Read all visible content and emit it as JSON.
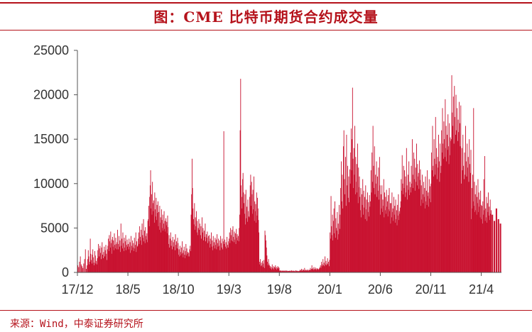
{
  "title": "图：CME 比特币期货合约成交量",
  "source": "来源：Wind，中泰证券研究所",
  "colors": {
    "bar": "#c8102e",
    "accent": "#b5121b",
    "axis": "#555555"
  },
  "chart_data": {
    "type": "bar",
    "title": "图：CME 比特币期货合约成交量",
    "xlabel": "",
    "ylabel": "",
    "ylim": [
      0,
      25000
    ],
    "y_ticks": [
      0,
      5000,
      10000,
      15000,
      20000,
      25000
    ],
    "x_ticks": [
      "17/12",
      "18/5",
      "18/10",
      "19/3",
      "19/8",
      "20/1",
      "20/6",
      "20/11",
      "21/4"
    ],
    "x_range": [
      "2017-12",
      "2021-05"
    ],
    "series": [
      {
        "frequency": "trading-day",
        "note": "approximate values read from the chart, grouped by month",
        "monthly_values": {
          "2017-12": [
            800,
            600,
            1200,
            1800,
            900,
            700,
            500,
            1000,
            1500,
            2600,
            400,
            800
          ],
          "2018-01": [
            1500,
            2500,
            1800,
            900,
            1200,
            3800,
            2100,
            1400,
            1000,
            2000,
            2600,
            1700,
            1100,
            800,
            2400,
            1900,
            1000,
            1300,
            900,
            1600
          ],
          "2018-02": [
            2500,
            3200,
            1800,
            2700,
            3000,
            2200,
            1500,
            2800,
            3400,
            2000,
            1600,
            2300,
            2900,
            1800,
            2500,
            3100,
            2100,
            1400,
            2600
          ],
          "2018-03": [
            3000,
            3800,
            2400,
            4200,
            3500,
            2800,
            4600,
            3300,
            2100,
            3700,
            4000,
            2900,
            3600,
            2500,
            4400,
            3100,
            2700,
            3900,
            3200,
            2600,
            3400,
            4800
          ],
          "2018-04": [
            2600,
            3200,
            4100,
            2900,
            3600,
            2300,
            5500,
            3000,
            3800,
            2700,
            4500,
            3300,
            2400,
            3900,
            2800,
            3500,
            4200,
            2500,
            3100,
            3700,
            2900
          ],
          "2018-05": [
            3200,
            2600,
            3800,
            2900,
            3400,
            2200,
            4100,
            3000,
            2500,
            3600,
            2800,
            3300,
            2400,
            3900,
            2700,
            3100,
            4500,
            2300,
            3500,
            2900,
            3000
          ],
          "2018-06": [
            3800,
            4500,
            3200,
            5200,
            4000,
            3600,
            4800,
            3100,
            5500,
            4200,
            3900,
            6000,
            3500,
            4700,
            3300,
            5100,
            4100,
            3700,
            4400,
            3400,
            5800
          ],
          "2018-07": [
            6000,
            7500,
            5200,
            8500,
            9800,
            11500,
            7200,
            8800,
            6500,
            10200,
            7800,
            6900,
            8100,
            5600,
            9000,
            7100,
            6300,
            8400,
            5900,
            7600,
            6700,
            8000
          ],
          "2018-08": [
            5200,
            6800,
            4800,
            7500,
            5600,
            6200,
            4500,
            7100,
            5900,
            5000,
            6500,
            4700,
            5500,
            6900,
            4900,
            5800,
            4600,
            6100,
            5300,
            5700,
            4400,
            6400,
            5100
          ],
          "2018-09": [
            3200,
            4200,
            2800,
            3800,
            4500,
            3000,
            3600,
            2600,
            4000,
            3400,
            2900,
            3700,
            2500,
            4300,
            3100,
            3500,
            2700,
            3900,
            3300
          ],
          "2018-10": [
            2000,
            2600,
            1800,
            3000,
            2300,
            1900,
            2800,
            2100,
            3500,
            2200,
            1700,
            2500,
            2900,
            2000,
            1600,
            2400,
            3200,
            1900,
            2700,
            2100,
            2300,
            1800
          ],
          "2018-11": [
            2200,
            1800,
            2600,
            3000,
            2400,
            6500,
            8800,
            12800,
            9500,
            7200,
            6000,
            5400,
            7800,
            4800,
            6200,
            5200,
            6900,
            4500,
            5800,
            4200,
            5000
          ],
          "2018-12": [
            6000,
            4800,
            5500,
            4200,
            5200,
            3800,
            6200,
            4500,
            5000,
            3600,
            4700,
            4000,
            5500,
            3500,
            4300,
            3900,
            4600,
            3300,
            4100
          ],
          "2019-01": [
            3500,
            4200,
            2800,
            3800,
            3200,
            4500,
            2900,
            3600,
            2500,
            4100,
            3000,
            3400,
            2700,
            3900,
            3100,
            3700,
            2600,
            4300,
            3300,
            2900,
            3800
          ],
          "2019-02": [
            3000,
            3600,
            2500,
            4100,
            3300,
            2800,
            3800,
            2600,
            3500,
            15900,
            3200,
            3700,
            2900,
            3400,
            2700,
            4000,
            3100,
            2800,
            3500
          ],
          "2019-03": [
            3800,
            4500,
            3300,
            5000,
            4200,
            3600,
            4800,
            3500,
            5200,
            4000,
            3400,
            4600,
            3700,
            4400,
            3200,
            4900,
            3900,
            4300,
            3600,
            4100,
            3500
          ],
          "2019-04": [
            5000,
            6500,
            16000,
            21800,
            9800,
            8500,
            7200,
            10500,
            11200,
            9000,
            7800,
            6600,
            8800,
            5400,
            9300,
            6100,
            7400,
            5700,
            8200,
            6900,
            6300
          ],
          "2019-05": [
            6200,
            8500,
            9800,
            11000,
            7500,
            10200,
            8800,
            6600,
            9300,
            7100,
            10800,
            5800,
            8000,
            6900,
            7700,
            5600,
            9000,
            6400,
            8400,
            7200,
            5900,
            4500
          ],
          "2019-06": [
            1200,
            900,
            1500,
            700,
            1100,
            800,
            1300,
            600,
            1000,
            1400,
            500,
            4700,
            4200,
            3600,
            2800,
            1900,
            1200,
            800,
            1500,
            1000
          ],
          "2019-07": [
            800,
            500,
            700,
            400,
            600,
            300,
            900,
            500,
            400,
            700,
            300,
            600,
            500,
            800,
            400,
            600,
            300,
            500,
            700,
            400,
            600,
            500
          ],
          "2019-08": [
            200,
            150,
            250,
            180,
            120,
            200,
            160,
            220,
            140,
            190,
            130,
            210,
            170,
            110,
            230,
            150,
            200,
            120,
            180,
            160,
            140,
            190
          ],
          "2019-09": [
            150,
            200,
            130,
            180,
            250,
            160,
            120,
            210,
            170,
            140,
            190,
            110,
            230,
            150,
            200,
            130,
            180,
            160,
            120,
            170
          ],
          "2019-10": [
            200,
            300,
            180,
            250,
            400,
            220,
            160,
            350,
            210,
            280,
            190,
            500,
            230,
            170,
            310,
            200,
            260,
            180,
            330,
            220,
            150,
            290,
            240
          ],
          "2019-11": [
            300,
            500,
            250,
            400,
            800,
            350,
            450,
            280,
            600,
            380,
            320,
            550,
            400,
            270,
            480,
            350,
            420,
            300,
            380,
            500
          ],
          "2019-12": [
            600,
            800,
            500,
            1200,
            700,
            900,
            1500,
            800,
            1100,
            700,
            1800,
            900,
            1300,
            800,
            1000,
            1600,
            900,
            1200,
            700,
            1400
          ],
          "2020-01": [
            4500,
            3800,
            8600,
            5200,
            4200,
            6500,
            3600,
            5800,
            7200,
            4400,
            8000,
            3900,
            6100,
            5000,
            4700,
            6800,
            3700,
            5500,
            4300,
            7600,
            4900
          ],
          "2020-02": [
            6500,
            9500,
            12500,
            8000,
            11000,
            7200,
            14200,
            16000,
            10500,
            8800,
            13000,
            7500,
            15500,
            9800,
            12000,
            8400,
            10800,
            7900,
            11600
          ],
          "2020-03": [
            10000,
            13500,
            16200,
            11500,
            15000,
            20800,
            12800,
            9500,
            14000,
            11000,
            16500,
            8800,
            13000,
            10200,
            12200,
            9000,
            14500,
            7800,
            11800,
            9600,
            10800,
            8500
          ],
          "2020-04": [
            7000,
            9500,
            6200,
            8800,
            7600,
            10500,
            6500,
            9200,
            7300,
            8500,
            6000,
            9800,
            7100,
            8200,
            5800,
            9000,
            6800,
            7900,
            6300,
            8700,
            7400
          ],
          "2020-05": [
            8000,
            11500,
            9000,
            13500,
            10200,
            16500,
            12000,
            9500,
            14200,
            8800,
            11000,
            10000,
            12500,
            8500,
            10800,
            9200,
            11800,
            8200,
            13000,
            9800
          ],
          "2020-06": [
            6500,
            8800,
            7200,
            9800,
            6800,
            8200,
            7500,
            10500,
            6200,
            9000,
            7000,
            8500,
            6600,
            9300,
            7400,
            8000,
            6300,
            8700,
            7100,
            9500,
            6900,
            7800
          ],
          "2020-07": [
            5500,
            7800,
            6200,
            9000,
            6800,
            7200,
            5800,
            8500,
            6500,
            7500,
            5600,
            8200,
            6000,
            7000,
            5300,
            7600,
            6400,
            8800,
            5900,
            6900,
            6600,
            7300
          ],
          "2020-08": [
            8000,
            10500,
            9200,
            13200,
            10000,
            8800,
            12000,
            9500,
            11500,
            8500,
            10800,
            9000,
            14000,
            9800,
            8200,
            11000,
            9300,
            12500,
            8700,
            10200,
            9600
          ],
          "2020-09": [
            9000,
            12000,
            10000,
            15000,
            11000,
            9500,
            13500,
            10500,
            12800,
            9200,
            11800,
            10200,
            14500,
            9800,
            12200,
            10800,
            11200,
            9400,
            12600,
            10400,
            11600
          ],
          "2020-10": [
            7500,
            9800,
            8200,
            11000,
            8800,
            7800,
            10200,
            8500,
            9500,
            7200,
            10800,
            8000,
            9200,
            7600,
            11500,
            8600,
            9000,
            7400,
            10500,
            8300,
            9700,
            7900
          ],
          "2020-11": [
            10000,
            13500,
            11500,
            16500,
            12000,
            10800,
            15000,
            12800,
            11000,
            17500,
            12200,
            14000,
            10500,
            13000,
            11800,
            15500,
            12500,
            10200,
            14500,
            11200
          ],
          "2020-12": [
            12000,
            16000,
            13500,
            18500,
            14500,
            12800,
            17000,
            15000,
            13000,
            19500,
            14000,
            16500,
            12500,
            15500,
            13800,
            17800,
            14200,
            12200,
            16800,
            13200,
            15200,
            14800
          ],
          "2021-01": [
            15000,
            22200,
            18000,
            16500,
            19800,
            14500,
            21000,
            17500,
            15500,
            20000,
            16000,
            18500,
            14800,
            17200,
            15800,
            19200,
            16800,
            14200,
            18800
          ],
          "2021-02": [
            10000,
            14000,
            11500,
            15500,
            12000,
            10500,
            13500,
            11000,
            16500,
            12500,
            10800,
            14500,
            11800,
            13000,
            10200,
            15000,
            12200,
            11200,
            13800
          ],
          "2021-03": [
            6000,
            9500,
            7200,
            11000,
            8000,
            18500,
            7500,
            10200,
            6800,
            8800,
            7000,
            9800,
            6500,
            8500,
            7800,
            10500,
            6800,
            9000,
            7400,
            8200,
            6200,
            9200,
            7600
          ],
          "2021-04": [
            6000,
            7500,
            5500,
            8000,
            6500,
            10500,
            7000,
            13100,
            5800,
            7200,
            6200,
            8500,
            5600,
            7800,
            6800,
            9000,
            6400,
            7400,
            5900,
            8200,
            6600,
            7000
          ],
          "2021-05": [
            6500,
            5800,
            7200,
            6000,
            5500
          ]
        }
      }
    ]
  }
}
